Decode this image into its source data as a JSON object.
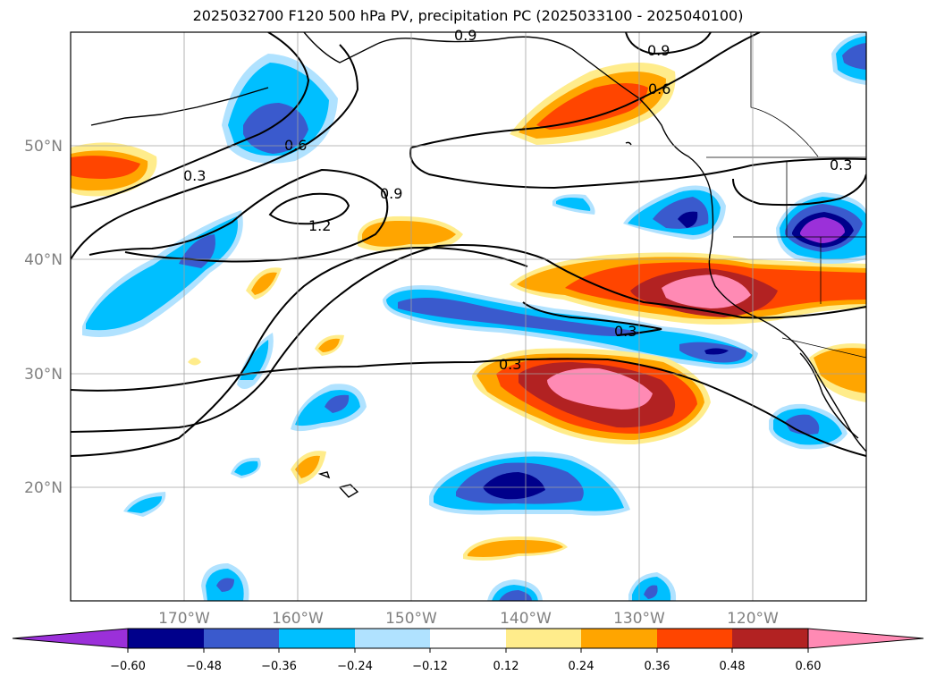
{
  "title": "2025032700 F120 500 hPa PV, precipitation PC (2025033100 - 2025040100)",
  "longitude_labels": [
    "170°W",
    "160°W",
    "150°W",
    "140°W",
    "130°W",
    "120°W"
  ],
  "latitude_labels": [
    "20°N",
    "30°N",
    "40°N",
    "50°N"
  ],
  "colorbar": {
    "tick_labels": [
      "−0.60",
      "−0.48",
      "−0.36",
      "−0.24",
      "−0.12",
      "0.12",
      "0.24",
      "0.36",
      "0.48",
      "0.60"
    ],
    "colors": [
      "#9b30d9",
      "#00008b",
      "#3a5acd",
      "#00bfff",
      "#b0e2ff",
      "#ffffff",
      "#ffec8b",
      "#ffa500",
      "#ff4500",
      "#b22222",
      "#ff8ab4"
    ]
  },
  "pv_contour_labels": [
    "0.3",
    "0.6",
    "0.9",
    "1.2"
  ],
  "chart_data": {
    "type": "map",
    "projection": "PlateCarree",
    "lon_range": [
      -180,
      -110
    ],
    "lat_range": [
      10,
      60
    ],
    "fields": [
      "500 hPa PV (contours)",
      "precipitation PC (shaded)"
    ],
    "valid_period": "2025033100 - 2025040100",
    "init": "2025032700",
    "forecast_hour": "F120"
  }
}
